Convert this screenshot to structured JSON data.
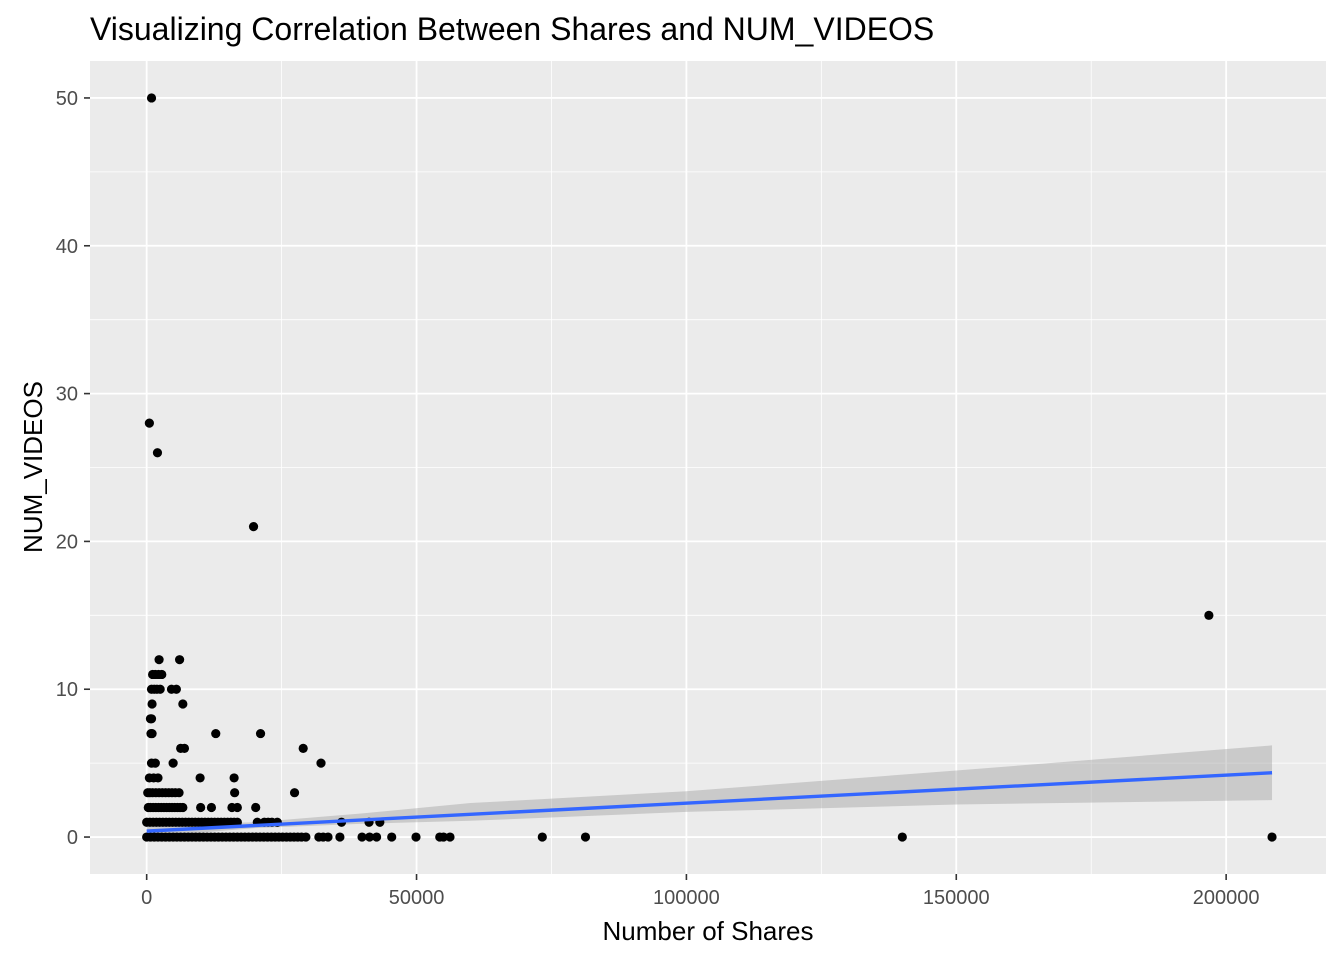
{
  "chart_data": {
    "type": "scatter",
    "title": "Visualizing Correlation Between Shares and NUM_VIDEOS",
    "xlabel": "Number of Shares",
    "ylabel": "NUM_VIDEOS",
    "xlim": [
      -10500,
      218500
    ],
    "ylim": [
      -2.5,
      52.5
    ],
    "x_ticks": [
      0,
      50000,
      100000,
      150000,
      200000
    ],
    "x_tick_labels": [
      "0",
      "50000",
      "100000",
      "150000",
      "200000"
    ],
    "y_ticks": [
      0,
      10,
      20,
      30,
      40,
      50
    ],
    "y_tick_labels": [
      "0",
      "10",
      "20",
      "30",
      "40",
      "50"
    ],
    "grid": true,
    "background": "#ebebeb",
    "grid_color": "#ffffff",
    "point_color": "#000000",
    "points": [
      [
        900,
        50
      ],
      [
        500,
        28
      ],
      [
        2000,
        26
      ],
      [
        19800,
        21
      ],
      [
        196800,
        15
      ],
      [
        2300,
        12
      ],
      [
        6100,
        12
      ],
      [
        1100,
        11
      ],
      [
        1600,
        11
      ],
      [
        2200,
        11
      ],
      [
        2800,
        11
      ],
      [
        900,
        10
      ],
      [
        1400,
        10
      ],
      [
        1900,
        10
      ],
      [
        2500,
        10
      ],
      [
        4600,
        10
      ],
      [
        5500,
        10
      ],
      [
        1000,
        9
      ],
      [
        6700,
        9
      ],
      [
        700,
        8
      ],
      [
        900,
        8
      ],
      [
        800,
        7
      ],
      [
        1000,
        7
      ],
      [
        12800,
        7
      ],
      [
        21100,
        7
      ],
      [
        6300,
        6
      ],
      [
        7000,
        6
      ],
      [
        29000,
        6
      ],
      [
        900,
        5
      ],
      [
        1600,
        5
      ],
      [
        4900,
        5
      ],
      [
        32300,
        5
      ],
      [
        500,
        4
      ],
      [
        1300,
        4
      ],
      [
        2100,
        4
      ],
      [
        9900,
        4
      ],
      [
        16200,
        4
      ],
      [
        200,
        3
      ],
      [
        600,
        3
      ],
      [
        1100,
        3
      ],
      [
        1700,
        3
      ],
      [
        2300,
        3
      ],
      [
        2900,
        3
      ],
      [
        3500,
        3
      ],
      [
        4100,
        3
      ],
      [
        4700,
        3
      ],
      [
        5300,
        3
      ],
      [
        6000,
        3
      ],
      [
        16300,
        3
      ],
      [
        27400,
        3
      ],
      [
        300,
        2
      ],
      [
        700,
        2
      ],
      [
        1200,
        2
      ],
      [
        1700,
        2
      ],
      [
        2200,
        2
      ],
      [
        2700,
        2
      ],
      [
        3200,
        2
      ],
      [
        3700,
        2
      ],
      [
        4200,
        2
      ],
      [
        4700,
        2
      ],
      [
        5200,
        2
      ],
      [
        5700,
        2
      ],
      [
        6200,
        2
      ],
      [
        6700,
        2
      ],
      [
        10000,
        2
      ],
      [
        12000,
        2
      ],
      [
        15800,
        2
      ],
      [
        16800,
        2
      ],
      [
        20200,
        2
      ],
      [
        0,
        1
      ],
      [
        600,
        1
      ],
      [
        1200,
        1
      ],
      [
        1800,
        1
      ],
      [
        2400,
        1
      ],
      [
        3000,
        1
      ],
      [
        3600,
        1
      ],
      [
        4200,
        1
      ],
      [
        4800,
        1
      ],
      [
        5400,
        1
      ],
      [
        6000,
        1
      ],
      [
        6600,
        1
      ],
      [
        7200,
        1
      ],
      [
        7800,
        1
      ],
      [
        8400,
        1
      ],
      [
        9000,
        1
      ],
      [
        9600,
        1
      ],
      [
        10200,
        1
      ],
      [
        10800,
        1
      ],
      [
        11400,
        1
      ],
      [
        12000,
        1
      ],
      [
        12600,
        1
      ],
      [
        13200,
        1
      ],
      [
        13800,
        1
      ],
      [
        14400,
        1
      ],
      [
        15000,
        1
      ],
      [
        15600,
        1
      ],
      [
        16200,
        1
      ],
      [
        16800,
        1
      ],
      [
        20500,
        1
      ],
      [
        21800,
        1
      ],
      [
        22500,
        1
      ],
      [
        23200,
        1
      ],
      [
        24200,
        1
      ],
      [
        36100,
        1
      ],
      [
        41200,
        1
      ],
      [
        43200,
        1
      ],
      [
        0,
        0
      ],
      [
        700,
        0
      ],
      [
        1400,
        0
      ],
      [
        2100,
        0
      ],
      [
        2800,
        0
      ],
      [
        3500,
        0
      ],
      [
        4200,
        0
      ],
      [
        4900,
        0
      ],
      [
        5600,
        0
      ],
      [
        6300,
        0
      ],
      [
        7000,
        0
      ],
      [
        7700,
        0
      ],
      [
        8400,
        0
      ],
      [
        9100,
        0
      ],
      [
        9800,
        0
      ],
      [
        10500,
        0
      ],
      [
        11200,
        0
      ],
      [
        11900,
        0
      ],
      [
        12600,
        0
      ],
      [
        13300,
        0
      ],
      [
        14000,
        0
      ],
      [
        14700,
        0
      ],
      [
        15400,
        0
      ],
      [
        16100,
        0
      ],
      [
        16800,
        0
      ],
      [
        17500,
        0
      ],
      [
        18200,
        0
      ],
      [
        18900,
        0
      ],
      [
        19600,
        0
      ],
      [
        20300,
        0
      ],
      [
        21000,
        0
      ],
      [
        21700,
        0
      ],
      [
        22400,
        0
      ],
      [
        23100,
        0
      ],
      [
        23800,
        0
      ],
      [
        24500,
        0
      ],
      [
        25200,
        0
      ],
      [
        25900,
        0
      ],
      [
        26600,
        0
      ],
      [
        27300,
        0
      ],
      [
        28000,
        0
      ],
      [
        28700,
        0
      ],
      [
        29500,
        0
      ],
      [
        31900,
        0
      ],
      [
        32700,
        0
      ],
      [
        33600,
        0
      ],
      [
        35800,
        0
      ],
      [
        39900,
        0
      ],
      [
        41300,
        0
      ],
      [
        42600,
        0
      ],
      [
        45400,
        0
      ],
      [
        49900,
        0
      ],
      [
        54300,
        0
      ],
      [
        55000,
        0
      ],
      [
        56200,
        0
      ],
      [
        73300,
        0
      ],
      [
        81300,
        0
      ],
      [
        140000,
        0
      ],
      [
        208500,
        0
      ]
    ],
    "trend_line": {
      "method": "lm",
      "color": "#3366ff",
      "x": [
        0,
        208500
      ],
      "y": [
        0.4,
        4.35
      ]
    },
    "confidence_band": {
      "fill": "#999999",
      "x": [
        0,
        20000,
        40000,
        60000,
        100000,
        150000,
        208500
      ],
      "lower": [
        0.0,
        0.6,
        0.9,
        1.1,
        1.7,
        2.2,
        2.5
      ],
      "upper": [
        0.8,
        1.0,
        1.6,
        2.3,
        3.1,
        4.5,
        6.2
      ]
    }
  }
}
